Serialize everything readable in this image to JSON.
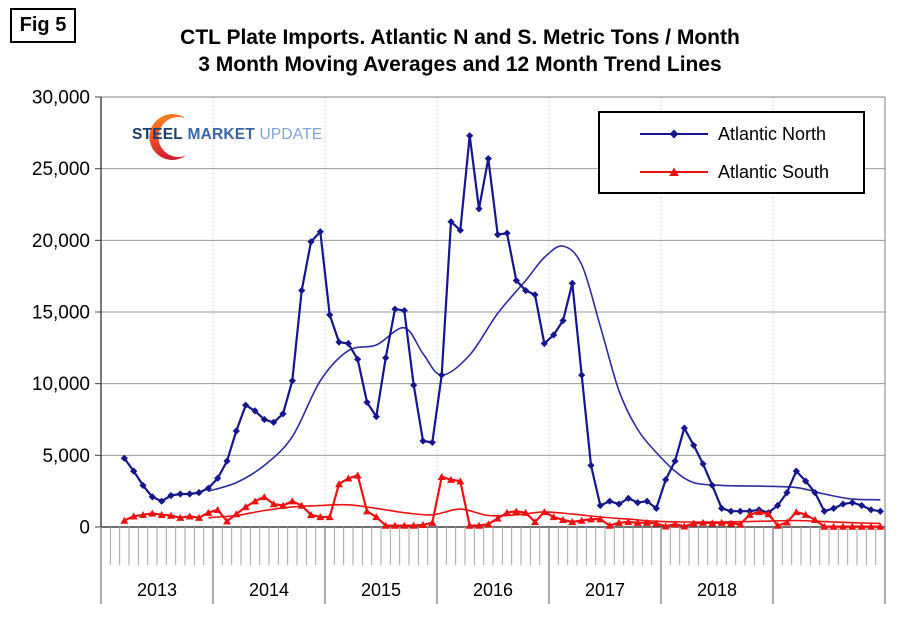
{
  "fig_label": "Fig 5",
  "title": {
    "line1": "CTL Plate Imports. Atlantic N and S. Metric Tons / Month",
    "line2": "3 Month Moving Averages and 12 Month Trend Lines"
  },
  "logo": {
    "steel": "STEEL",
    "market": "MARKET",
    "update": "UPDATE",
    "steel_color": "#1c3d6e",
    "market_color": "#3a66a7",
    "update_color": "#7fa3d4",
    "crescent_top_color": "#f7941e",
    "crescent_bottom_color": "#cf2030"
  },
  "legend": {
    "items": [
      {
        "label": "Atlantic North",
        "color": "#16168c",
        "marker": "diamond"
      },
      {
        "label": "Atlantic South",
        "color": "#ee1111",
        "marker": "triangle"
      }
    ]
  },
  "chart_data": {
    "type": "line",
    "title": "CTL Plate Imports. Atlantic N and S. Metric Tons / Month",
    "subtitle": "3 Month Moving Averages and 12 Month Trend Lines",
    "units": "Metric Tons / Month",
    "ylim": [
      0,
      30000
    ],
    "ytick_interval": 5000,
    "ytick_labels": [
      "0",
      "5,000",
      "10,000",
      "15,000",
      "20,000",
      "25,000",
      "30,000"
    ],
    "year_labels": [
      "2013",
      "2014",
      "2015",
      "2016",
      "2017",
      "2018"
    ],
    "months_per_year": 12,
    "total_months": 84,
    "grid": "horizontal-major",
    "legend_position": "top-right-inside",
    "series": [
      {
        "name": "Atlantic North",
        "kind": "3-month-moving-average",
        "color": "#16168c",
        "marker": "diamond",
        "start_month_index": 2,
        "start_month": "2013-03",
        "values": [
          4800,
          3900,
          2900,
          2100,
          1800,
          2200,
          2300,
          2300,
          2400,
          2700,
          3400,
          4600,
          6700,
          8500,
          8100,
          7500,
          7300,
          7900,
          10200,
          16500,
          19900,
          20600,
          14800,
          12900,
          12800,
          11700,
          8700,
          7700,
          11800,
          15200,
          15100,
          9900,
          6000,
          5900,
          10600,
          21300,
          20700,
          27300,
          22200,
          25700,
          20400,
          20500,
          17200,
          16500,
          16200,
          12800,
          13400,
          14400,
          17000,
          10600,
          4300,
          1500,
          1800,
          1600,
          2000,
          1700,
          1800,
          1300,
          3300,
          4600,
          6900,
          5700,
          4400,
          2900,
          1300,
          1100,
          1100,
          1100,
          1200,
          1000,
          1500,
          2400,
          3900,
          3200,
          2400,
          1100,
          1300,
          1600,
          1700,
          1500,
          1200,
          1100
        ]
      },
      {
        "name": "Atlantic South",
        "kind": "3-month-moving-average",
        "color": "#ee1111",
        "marker": "triangle",
        "start_month_index": 2,
        "start_month": "2013-03",
        "values": [
          450,
          750,
          850,
          950,
          850,
          800,
          650,
          750,
          650,
          1000,
          1200,
          400,
          900,
          1400,
          1800,
          2100,
          1600,
          1500,
          1800,
          1500,
          850,
          700,
          700,
          3000,
          3400,
          3600,
          1100,
          700,
          100,
          100,
          100,
          100,
          150,
          300,
          3500,
          3300,
          3200,
          100,
          100,
          200,
          600,
          1000,
          1100,
          1000,
          350,
          1050,
          700,
          500,
          350,
          450,
          550,
          550,
          100,
          300,
          350,
          300,
          300,
          250,
          50,
          200,
          50,
          250,
          300,
          270,
          300,
          250,
          200,
          860,
          1050,
          910,
          100,
          330,
          1050,
          860,
          500,
          30,
          30,
          30,
          30,
          30,
          30,
          30
        ]
      },
      {
        "name": "Atlantic North 12 Month Trend",
        "kind": "12-month-trend",
        "color": "#2c2c9e",
        "marker": "none",
        "points": [
          [
            11,
            2500
          ],
          [
            14,
            3100
          ],
          [
            17,
            4300
          ],
          [
            20,
            6300
          ],
          [
            23,
            10200
          ],
          [
            26,
            12300
          ],
          [
            29,
            12700
          ],
          [
            32,
            13900
          ],
          [
            34,
            12100
          ],
          [
            36,
            10600
          ],
          [
            39,
            12000
          ],
          [
            42,
            14900
          ],
          [
            45,
            17200
          ],
          [
            47,
            18800
          ],
          [
            49,
            19600
          ],
          [
            51,
            18300
          ],
          [
            53,
            14000
          ],
          [
            55,
            9500
          ],
          [
            57,
            6800
          ],
          [
            59,
            5200
          ],
          [
            61,
            3900
          ],
          [
            63,
            3100
          ],
          [
            66,
            2900
          ],
          [
            70,
            2850
          ],
          [
            74,
            2750
          ],
          [
            77,
            2300
          ],
          [
            80,
            1950
          ],
          [
            83,
            1900
          ]
        ]
      },
      {
        "name": "Atlantic South 12 Month Trend",
        "kind": "12-month-trend",
        "color": "#ee1111",
        "marker": "none",
        "points": [
          [
            11,
            650
          ],
          [
            14,
            800
          ],
          [
            17,
            1150
          ],
          [
            20,
            1400
          ],
          [
            23,
            1500
          ],
          [
            26,
            1550
          ],
          [
            29,
            1300
          ],
          [
            32,
            1000
          ],
          [
            35,
            850
          ],
          [
            38,
            1250
          ],
          [
            41,
            800
          ],
          [
            44,
            850
          ],
          [
            47,
            1050
          ],
          [
            50,
            900
          ],
          [
            53,
            700
          ],
          [
            56,
            550
          ],
          [
            59,
            400
          ],
          [
            62,
            350
          ],
          [
            66,
            350
          ],
          [
            70,
            400
          ],
          [
            74,
            450
          ],
          [
            77,
            380
          ],
          [
            80,
            300
          ],
          [
            83,
            250
          ]
        ]
      }
    ]
  }
}
